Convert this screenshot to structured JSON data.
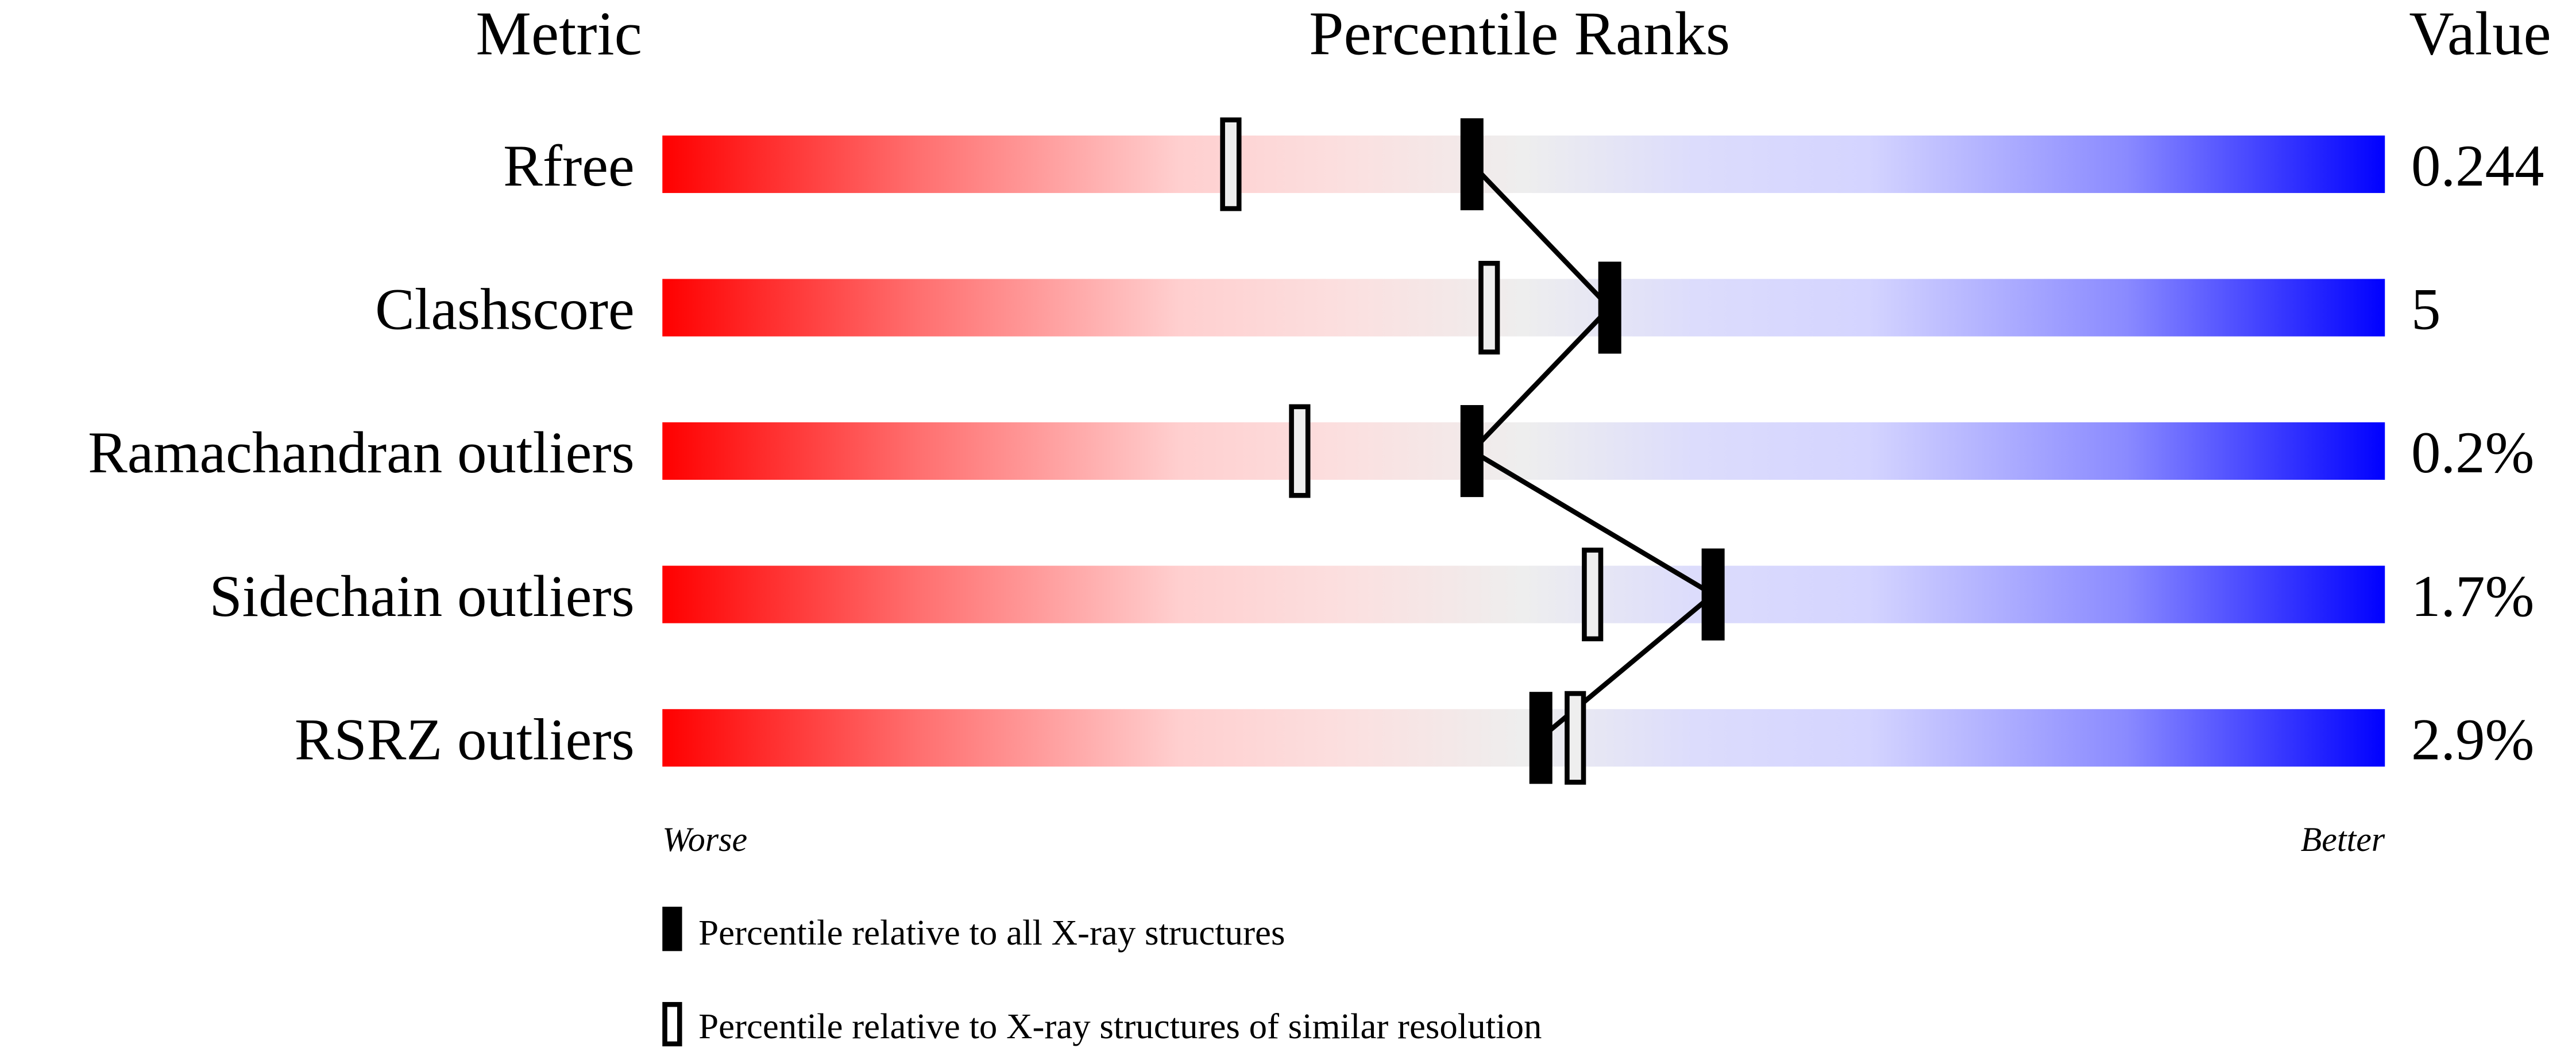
{
  "chart_data": {
    "type": "percentile-bar",
    "headers": {
      "metric": "Metric",
      "title": "Percentile Ranks",
      "value": "Value"
    },
    "xlim": [
      0,
      100
    ],
    "rows": [
      {
        "metric": "Rfree",
        "value": "0.244",
        "percentile_all": 47,
        "percentile_similar": 33
      },
      {
        "metric": "Clashscore",
        "value": "5",
        "percentile_all": 55,
        "percentile_similar": 48
      },
      {
        "metric": "Ramachandran outliers",
        "value": "0.2%",
        "percentile_all": 47,
        "percentile_similar": 37
      },
      {
        "metric": "Sidechain outliers",
        "value": "1.7%",
        "percentile_all": 61,
        "percentile_similar": 54
      },
      {
        "metric": "RSRZ outliers",
        "value": "2.9%",
        "percentile_all": 51,
        "percentile_similar": 53
      }
    ],
    "axis_left_label": "Worse",
    "axis_right_label": "Better",
    "legend": [
      {
        "marker": "filled",
        "label": "Percentile relative to all X-ray structures"
      },
      {
        "marker": "open",
        "label": "Percentile relative to X-ray structures of similar resolution"
      }
    ],
    "colors": {
      "worse": "#ff0000",
      "middle": "#eeeeee",
      "better": "#0000ff"
    }
  }
}
